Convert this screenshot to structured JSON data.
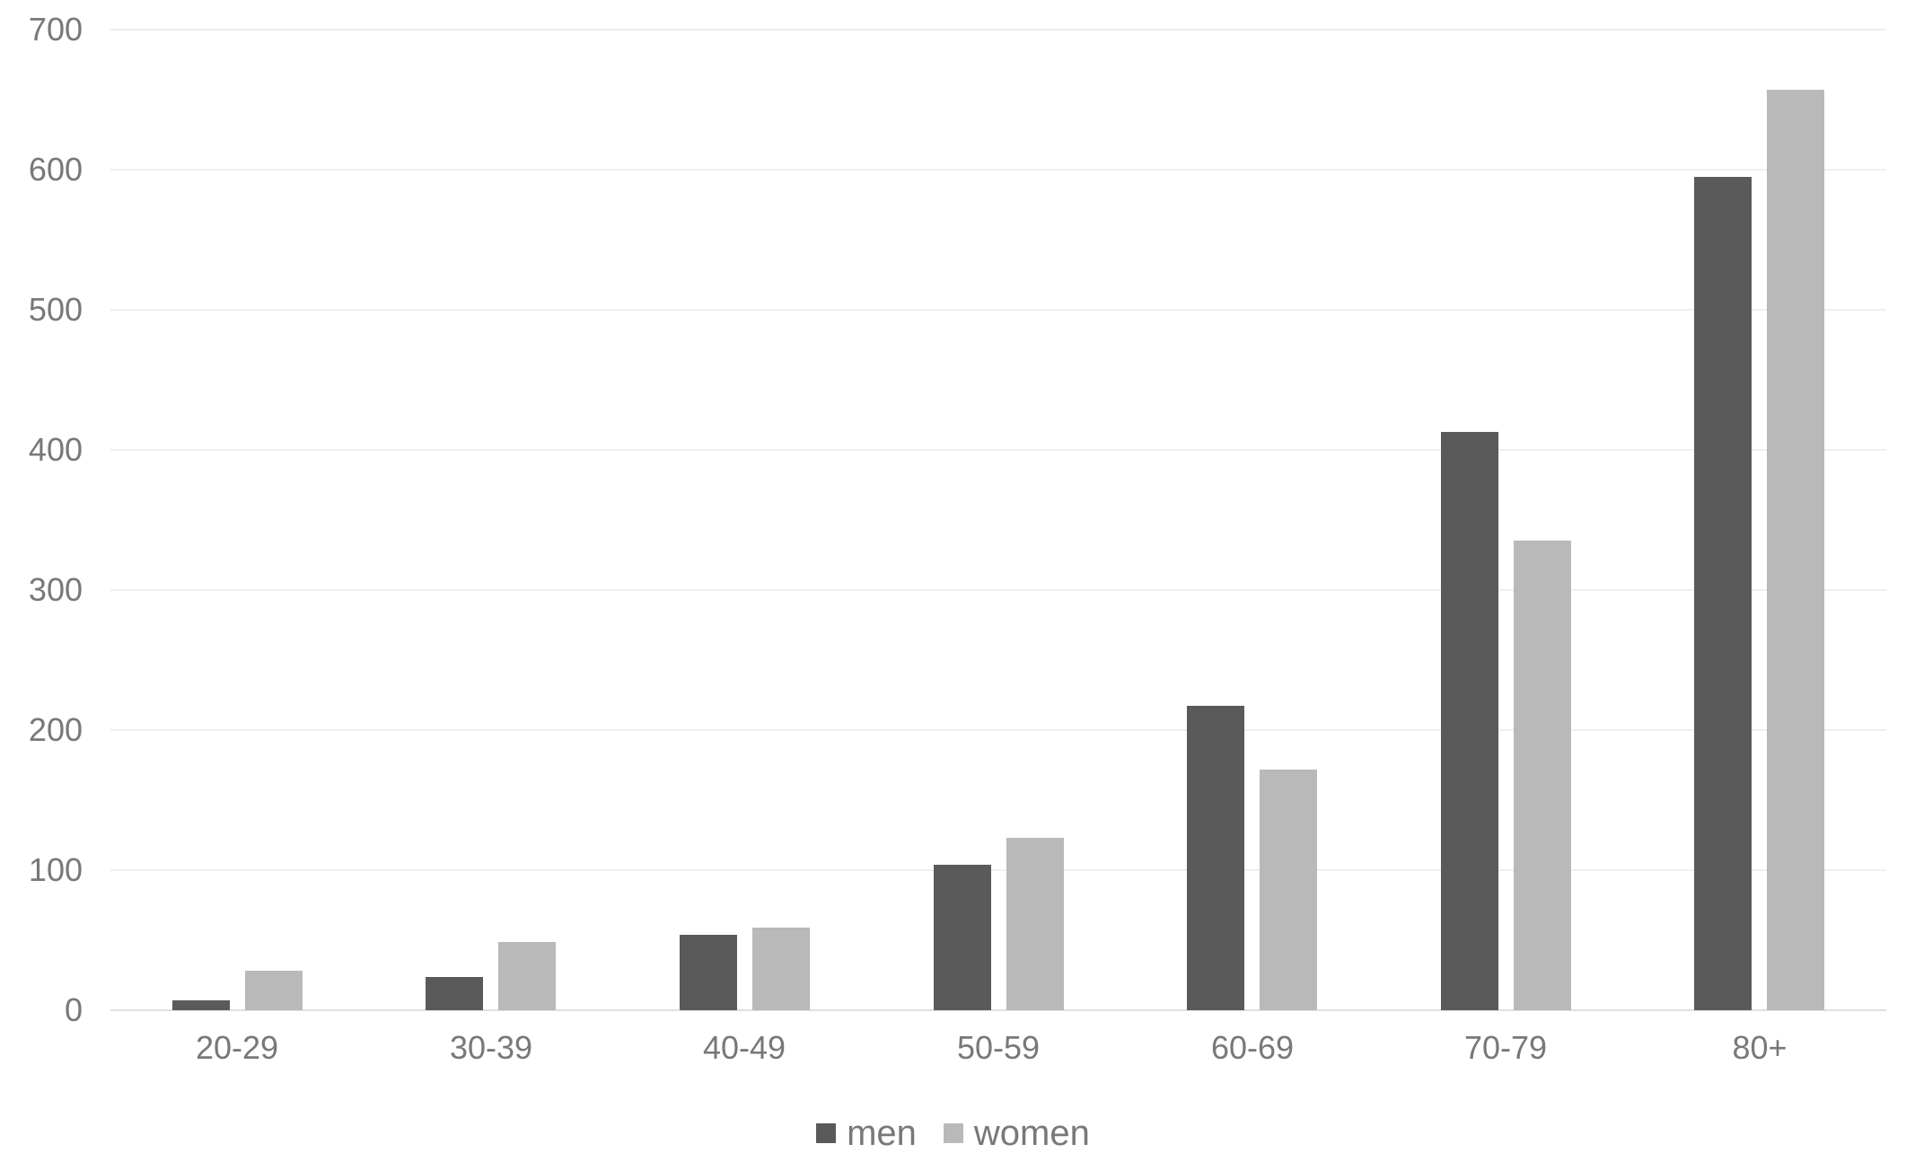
{
  "chart_data": {
    "type": "bar",
    "title": "",
    "xlabel": "",
    "ylabel": "",
    "categories": [
      "20-29",
      "30-39",
      "40-49",
      "50-59",
      "60-69",
      "70-79",
      "80+"
    ],
    "series": [
      {
        "name": "men",
        "color": "#5a5a5a",
        "values": [
          7,
          24,
          54,
          104,
          217,
          413,
          595
        ]
      },
      {
        "name": "women",
        "color": "#b9b9b9",
        "values": [
          28,
          49,
          59,
          123,
          172,
          335,
          657
        ]
      }
    ],
    "ylim": [
      0,
      700
    ],
    "yticks": [
      0,
      100,
      200,
      300,
      400,
      500,
      600,
      700
    ],
    "grid": true,
    "legend_position": "bottom-center",
    "legend_labels": [
      "men",
      "women"
    ]
  },
  "colors": {
    "grid_line": "#efefef",
    "axis_line": "#e0e0e0",
    "tick_label": "#77787a",
    "legend_label": "#77787a",
    "background": "#ffffff"
  }
}
